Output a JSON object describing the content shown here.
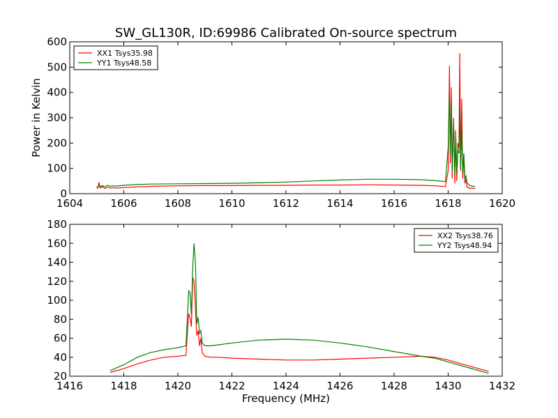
{
  "chart_data": [
    {
      "type": "line",
      "title": "SW_GL130R, ID:69986 Calibrated On-source spectrum",
      "xlabel": "",
      "ylabel": "Power in Kelvin",
      "xlim": [
        1604,
        1620
      ],
      "ylim": [
        0,
        600
      ],
      "xticks": [
        1604,
        1606,
        1608,
        1610,
        1612,
        1614,
        1616,
        1618,
        1620
      ],
      "yticks": [
        0,
        100,
        200,
        300,
        400,
        500,
        600
      ],
      "grid": false,
      "legend": "top-left",
      "series": [
        {
          "name": "XX1 Tsys35.98",
          "color": "#ff0000",
          "x": [
            1605.0,
            1605.05,
            1605.08,
            1605.12,
            1605.2,
            1605.3,
            1605.4,
            1605.5,
            1605.6,
            1605.7,
            1606.0,
            1606.5,
            1607.0,
            1608.0,
            1609.0,
            1610.0,
            1611.0,
            1612.0,
            1613.0,
            1614.0,
            1615.0,
            1616.0,
            1617.0,
            1617.5,
            1617.9,
            1618.0,
            1618.05,
            1618.08,
            1618.12,
            1618.15,
            1618.2,
            1618.25,
            1618.28,
            1618.32,
            1618.36,
            1618.4,
            1618.43,
            1618.46,
            1618.5,
            1618.54,
            1618.58,
            1618.62,
            1618.66,
            1618.7,
            1618.75,
            1618.8,
            1618.9,
            1619.0
          ],
          "y": [
            20,
            25,
            45,
            22,
            28,
            20,
            26,
            22,
            24,
            22,
            24,
            27,
            29,
            31,
            32,
            32,
            33,
            33,
            34,
            34,
            35,
            34,
            33,
            31,
            28,
            90,
            505,
            120,
            420,
            60,
            300,
            40,
            250,
            50,
            200,
            180,
            555,
            90,
            375,
            60,
            150,
            40,
            60,
            25,
            25,
            20,
            22,
            20
          ]
        },
        {
          "name": "YY1 Tsys48.58",
          "color": "#008000",
          "x": [
            1605.0,
            1605.05,
            1605.08,
            1605.12,
            1605.2,
            1605.3,
            1605.4,
            1605.5,
            1605.6,
            1605.7,
            1606.0,
            1606.5,
            1607.0,
            1608.0,
            1609.0,
            1610.0,
            1611.0,
            1612.0,
            1613.0,
            1614.0,
            1615.0,
            1616.0,
            1617.0,
            1617.5,
            1617.9,
            1618.0,
            1618.05,
            1618.08,
            1618.12,
            1618.15,
            1618.2,
            1618.25,
            1618.28,
            1618.32,
            1618.36,
            1618.4,
            1618.43,
            1618.46,
            1618.5,
            1618.54,
            1618.58,
            1618.62,
            1618.66,
            1618.7,
            1618.75,
            1618.8,
            1618.9,
            1619.0
          ],
          "y": [
            24,
            30,
            36,
            28,
            32,
            27,
            33,
            29,
            31,
            30,
            33,
            36,
            38,
            39,
            40,
            41,
            43,
            46,
            50,
            54,
            57,
            57,
            55,
            52,
            48,
            180,
            400,
            150,
            365,
            90,
            280,
            70,
            220,
            80,
            170,
            160,
            340,
            100,
            250,
            80,
            160,
            60,
            70,
            40,
            38,
            32,
            30,
            28
          ]
        }
      ]
    },
    {
      "type": "line",
      "title": "",
      "xlabel": "Frequency (MHz)",
      "ylabel": "",
      "xlim": [
        1416,
        1432
      ],
      "ylim": [
        20,
        180
      ],
      "xticks": [
        1416,
        1418,
        1420,
        1422,
        1424,
        1426,
        1428,
        1430,
        1432
      ],
      "yticks": [
        20,
        40,
        60,
        80,
        100,
        120,
        140,
        160,
        180
      ],
      "grid": false,
      "legend": "top-right",
      "series": [
        {
          "name": "XX2 Tsys38.76",
          "color": "#ff0000",
          "x": [
            1417.5,
            1418.0,
            1418.5,
            1419.0,
            1419.5,
            1420.0,
            1420.3,
            1420.4,
            1420.45,
            1420.5,
            1420.55,
            1420.6,
            1420.65,
            1420.7,
            1420.75,
            1420.8,
            1420.85,
            1420.9,
            1421.0,
            1421.2,
            1421.5,
            1422.0,
            1423.0,
            1424.0,
            1425.0,
            1426.0,
            1427.0,
            1428.0,
            1429.0,
            1429.5,
            1430.0,
            1430.5,
            1431.0,
            1431.5
          ],
          "y": [
            24,
            28,
            33,
            37,
            40,
            41,
            42,
            86,
            82,
            72,
            124,
            120,
            92,
            63,
            68,
            52,
            60,
            45,
            41,
            40,
            40,
            39,
            38,
            37,
            37,
            38,
            39,
            40,
            41,
            40,
            37,
            33,
            29,
            25
          ]
        },
        {
          "name": "YY2 Tsys48.94",
          "color": "#008000",
          "x": [
            1417.5,
            1418.0,
            1418.5,
            1419.0,
            1419.5,
            1420.0,
            1420.3,
            1420.4,
            1420.45,
            1420.5,
            1420.55,
            1420.6,
            1420.65,
            1420.7,
            1420.75,
            1420.8,
            1420.85,
            1420.9,
            1421.0,
            1421.2,
            1421.5,
            1422.0,
            1423.0,
            1424.0,
            1425.0,
            1426.0,
            1427.0,
            1428.0,
            1429.0,
            1429.5,
            1430.0,
            1430.5,
            1431.0,
            1431.5
          ],
          "y": [
            26,
            32,
            40,
            45,
            48,
            50,
            52,
            110,
            108,
            85,
            135,
            160,
            140,
            75,
            82,
            65,
            68,
            55,
            52,
            52,
            53,
            55,
            58,
            59,
            58,
            55,
            51,
            46,
            41,
            39,
            35,
            31,
            27,
            23
          ]
        }
      ]
    }
  ]
}
